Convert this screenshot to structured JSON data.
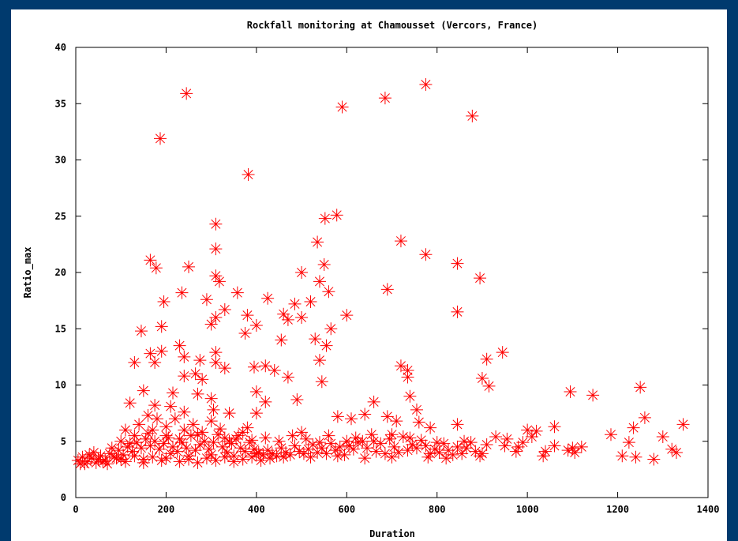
{
  "chart_data": {
    "type": "scatter",
    "title": "Rockfall monitoring at Chamousset (Vercors, France)",
    "xlabel": "Duration",
    "ylabel": "Ratio_max",
    "xlim": [
      0,
      1400
    ],
    "ylim": [
      0,
      40
    ],
    "xticks": [
      0,
      200,
      400,
      600,
      800,
      1000,
      1200,
      1400
    ],
    "yticks": [
      0,
      5,
      10,
      15,
      20,
      25,
      30,
      35,
      40
    ],
    "grid": false,
    "marker": "asterisk",
    "marker_color": "#ff0000",
    "series": [
      {
        "points": [
          [
            245,
            35.9
          ],
          [
            187,
            31.9
          ],
          [
            775,
            36.7
          ],
          [
            685,
            35.5
          ],
          [
            590,
            34.7
          ],
          [
            878,
            33.9
          ],
          [
            382,
            28.7
          ],
          [
            578,
            25.1
          ],
          [
            310,
            24.3
          ],
          [
            552,
            24.8
          ],
          [
            720,
            22.8
          ],
          [
            310,
            22.1
          ],
          [
            535,
            22.7
          ],
          [
            775,
            21.6
          ],
          [
            165,
            21.1
          ],
          [
            845,
            20.8
          ],
          [
            250,
            20.5
          ],
          [
            178,
            20.4
          ],
          [
            550,
            20.7
          ],
          [
            500,
            20.0
          ],
          [
            895,
            19.5
          ],
          [
            310,
            19.7
          ],
          [
            318,
            19.2
          ],
          [
            540,
            19.2
          ],
          [
            560,
            18.3
          ],
          [
            235,
            18.2
          ],
          [
            358,
            18.2
          ],
          [
            690,
            18.5
          ],
          [
            195,
            17.4
          ],
          [
            425,
            17.7
          ],
          [
            290,
            17.6
          ],
          [
            520,
            17.4
          ],
          [
            485,
            17.2
          ],
          [
            380,
            16.2
          ],
          [
            460,
            16.3
          ],
          [
            600,
            16.2
          ],
          [
            845,
            16.5
          ],
          [
            330,
            16.7
          ],
          [
            310,
            16.0
          ],
          [
            500,
            16.0
          ],
          [
            470,
            15.8
          ],
          [
            400,
            15.3
          ],
          [
            300,
            15.4
          ],
          [
            190,
            15.2
          ],
          [
            145,
            14.8
          ],
          [
            565,
            15.0
          ],
          [
            375,
            14.6
          ],
          [
            530,
            14.1
          ],
          [
            455,
            14.0
          ],
          [
            555,
            13.5
          ],
          [
            230,
            13.5
          ],
          [
            165,
            12.8
          ],
          [
            190,
            13.0
          ],
          [
            310,
            12.9
          ],
          [
            945,
            12.9
          ],
          [
            240,
            12.5
          ],
          [
            275,
            12.2
          ],
          [
            540,
            12.2
          ],
          [
            910,
            12.3
          ],
          [
            175,
            12.0
          ],
          [
            130,
            12.0
          ],
          [
            310,
            12.0
          ],
          [
            395,
            11.6
          ],
          [
            420,
            11.7
          ],
          [
            720,
            11.7
          ],
          [
            440,
            11.3
          ],
          [
            735,
            11.3
          ],
          [
            330,
            11.5
          ],
          [
            265,
            11.0
          ],
          [
            735,
            10.7
          ],
          [
            240,
            10.8
          ],
          [
            280,
            10.5
          ],
          [
            900,
            10.6
          ],
          [
            915,
            9.9
          ],
          [
            470,
            10.7
          ],
          [
            545,
            10.3
          ],
          [
            1095,
            9.4
          ],
          [
            1145,
            9.1
          ],
          [
            1250,
            9.8
          ],
          [
            740,
            9.0
          ],
          [
            150,
            9.5
          ],
          [
            215,
            9.3
          ],
          [
            270,
            9.2
          ],
          [
            400,
            9.4
          ],
          [
            300,
            8.8
          ],
          [
            660,
            8.5
          ],
          [
            120,
            8.4
          ],
          [
            175,
            8.2
          ],
          [
            210,
            8.1
          ],
          [
            420,
            8.5
          ],
          [
            490,
            8.7
          ],
          [
            755,
            7.8
          ],
          [
            305,
            7.8
          ],
          [
            340,
            7.5
          ],
          [
            400,
            7.5
          ],
          [
            160,
            7.3
          ],
          [
            240,
            7.6
          ],
          [
            580,
            7.2
          ],
          [
            610,
            7.0
          ],
          [
            640,
            7.4
          ],
          [
            690,
            7.2
          ],
          [
            710,
            6.8
          ],
          [
            760,
            6.7
          ],
          [
            845,
            6.5
          ],
          [
            1060,
            6.3
          ],
          [
            1345,
            6.5
          ],
          [
            1260,
            7.1
          ],
          [
            785,
            6.2
          ],
          [
            1000,
            6.0
          ],
          [
            1020,
            5.9
          ],
          [
            1235,
            6.2
          ],
          [
            500,
            5.8
          ],
          [
            560,
            5.5
          ],
          [
            420,
            5.3
          ],
          [
            600,
            5.0
          ],
          [
            930,
            5.4
          ],
          [
            955,
            5.2
          ],
          [
            1185,
            5.6
          ],
          [
            1300,
            5.4
          ],
          [
            1225,
            4.9
          ],
          [
            990,
            4.9
          ],
          [
            1100,
            4.4
          ],
          [
            1320,
            4.3
          ],
          [
            975,
            4.1
          ],
          [
            1040,
            4.1
          ],
          [
            1105,
            4.0
          ],
          [
            1330,
            4.0
          ],
          [
            1035,
            3.7
          ],
          [
            1280,
            3.4
          ],
          [
            1240,
            3.6
          ],
          [
            1210,
            3.7
          ],
          [
            900,
            3.9
          ],
          [
            820,
            3.5
          ],
          [
            780,
            3.6
          ],
          [
            700,
            3.6
          ],
          [
            640,
            3.5
          ],
          [
            580,
            3.7
          ],
          [
            520,
            3.6
          ],
          [
            460,
            3.6
          ],
          [
            400,
            3.9
          ],
          [
            350,
            3.7
          ],
          [
            300,
            3.8
          ],
          [
            250,
            3.7
          ],
          [
            200,
            3.5
          ],
          [
            150,
            3.4
          ],
          [
            100,
            3.4
          ],
          [
            60,
            3.2
          ],
          [
            20,
            3.0
          ],
          [
            5,
            3.3
          ],
          [
            10,
            3.0
          ],
          [
            15,
            3.6
          ],
          [
            25,
            3.2
          ],
          [
            35,
            3.5
          ],
          [
            45,
            3.1
          ],
          [
            55,
            3.7
          ],
          [
            65,
            3.3
          ],
          [
            75,
            3.9
          ],
          [
            85,
            3.6
          ],
          [
            95,
            4.2
          ],
          [
            105,
            3.8
          ],
          [
            115,
            4.5
          ],
          [
            125,
            4.1
          ],
          [
            135,
            4.9
          ],
          [
            145,
            4.4
          ],
          [
            155,
            5.2
          ],
          [
            165,
            4.6
          ],
          [
            175,
            5.0
          ],
          [
            185,
            4.3
          ],
          [
            195,
            4.8
          ],
          [
            205,
            5.3
          ],
          [
            215,
            4.5
          ],
          [
            225,
            4.1
          ],
          [
            235,
            4.9
          ],
          [
            245,
            4.4
          ],
          [
            255,
            5.5
          ],
          [
            265,
            4.2
          ],
          [
            275,
            4.7
          ],
          [
            285,
            5.0
          ],
          [
            295,
            4.3
          ],
          [
            305,
            4.9
          ],
          [
            315,
            5.6
          ],
          [
            325,
            4.5
          ],
          [
            335,
            4.0
          ],
          [
            345,
            4.8
          ],
          [
            355,
            5.2
          ],
          [
            365,
            4.4
          ],
          [
            375,
            4.1
          ],
          [
            385,
            4.9
          ],
          [
            395,
            4.3
          ],
          [
            405,
            4.0
          ],
          [
            415,
            3.8
          ],
          [
            425,
            4.2
          ],
          [
            435,
            3.9
          ],
          [
            445,
            3.7
          ],
          [
            455,
            4.4
          ],
          [
            465,
            4.0
          ],
          [
            475,
            3.8
          ],
          [
            485,
            4.6
          ],
          [
            495,
            4.1
          ],
          [
            505,
            3.9
          ],
          [
            515,
            4.3
          ],
          [
            525,
            4.7
          ],
          [
            535,
            4.0
          ],
          [
            545,
            4.4
          ],
          [
            555,
            3.9
          ],
          [
            565,
            4.8
          ],
          [
            575,
            4.2
          ],
          [
            585,
            4.5
          ],
          [
            595,
            3.8
          ],
          [
            605,
            4.6
          ],
          [
            615,
            4.3
          ],
          [
            625,
            4.9
          ],
          [
            635,
            5.0
          ],
          [
            645,
            4.4
          ],
          [
            655,
            5.6
          ],
          [
            665,
            4.1
          ],
          [
            675,
            4.8
          ],
          [
            685,
            3.9
          ],
          [
            695,
            5.2
          ],
          [
            705,
            4.5
          ],
          [
            715,
            4.0
          ],
          [
            725,
            5.4
          ],
          [
            735,
            4.2
          ],
          [
            745,
            4.7
          ],
          [
            755,
            4.4
          ],
          [
            765,
            5.1
          ],
          [
            775,
            4.6
          ],
          [
            785,
            3.9
          ],
          [
            795,
            4.3
          ],
          [
            805,
            4.0
          ],
          [
            815,
            4.8
          ],
          [
            825,
            4.2
          ],
          [
            835,
            3.8
          ],
          [
            845,
            4.5
          ],
          [
            855,
            3.9
          ],
          [
            865,
            4.4
          ],
          [
            875,
            4.9
          ],
          [
            885,
            4.1
          ],
          [
            895,
            3.7
          ],
          [
            30,
            3.8
          ],
          [
            50,
            3.4
          ],
          [
            70,
            3.0
          ],
          [
            90,
            3.5
          ],
          [
            110,
            3.2
          ],
          [
            130,
            3.7
          ],
          [
            150,
            3.1
          ],
          [
            170,
            3.6
          ],
          [
            190,
            3.3
          ],
          [
            210,
            3.9
          ],
          [
            230,
            3.2
          ],
          [
            250,
            3.4
          ],
          [
            270,
            3.1
          ],
          [
            290,
            3.5
          ],
          [
            310,
            3.3
          ],
          [
            330,
            3.6
          ],
          [
            350,
            3.2
          ],
          [
            370,
            3.4
          ],
          [
            390,
            3.6
          ],
          [
            410,
            3.3
          ],
          [
            430,
            3.5
          ],
          [
            40,
            4.0
          ],
          [
            80,
            4.4
          ],
          [
            120,
            4.8
          ],
          [
            160,
            5.7
          ],
          [
            200,
            6.3
          ],
          [
            220,
            7.0
          ],
          [
            260,
            6.5
          ],
          [
            280,
            5.8
          ],
          [
            320,
            6.1
          ],
          [
            360,
            5.5
          ],
          [
            380,
            6.2
          ],
          [
            110,
            6.0
          ],
          [
            140,
            6.5
          ],
          [
            180,
            7.0
          ],
          [
            200,
            5.5
          ],
          [
            240,
            6.0
          ],
          [
            300,
            6.8
          ],
          [
            340,
            5.0
          ],
          [
            370,
            5.8
          ],
          [
            100,
            5.0
          ],
          [
            130,
            5.5
          ],
          [
            170,
            6.0
          ],
          [
            230,
            5.2
          ],
          [
            270,
            5.6
          ],
          [
            330,
            5.3
          ],
          [
            390,
            5.1
          ],
          [
            450,
            5.0
          ],
          [
            480,
            5.5
          ],
          [
            510,
            5.2
          ],
          [
            540,
            4.9
          ],
          [
            620,
            5.3
          ],
          [
            660,
            5.0
          ],
          [
            700,
            5.6
          ],
          [
            740,
            5.3
          ],
          [
            800,
            4.9
          ],
          [
            860,
            5.0
          ],
          [
            910,
            4.7
          ],
          [
            950,
            4.6
          ],
          [
            980,
            4.5
          ],
          [
            1010,
            5.4
          ],
          [
            1060,
            4.6
          ],
          [
            1090,
            4.2
          ],
          [
            1120,
            4.5
          ]
        ]
      }
    ]
  }
}
